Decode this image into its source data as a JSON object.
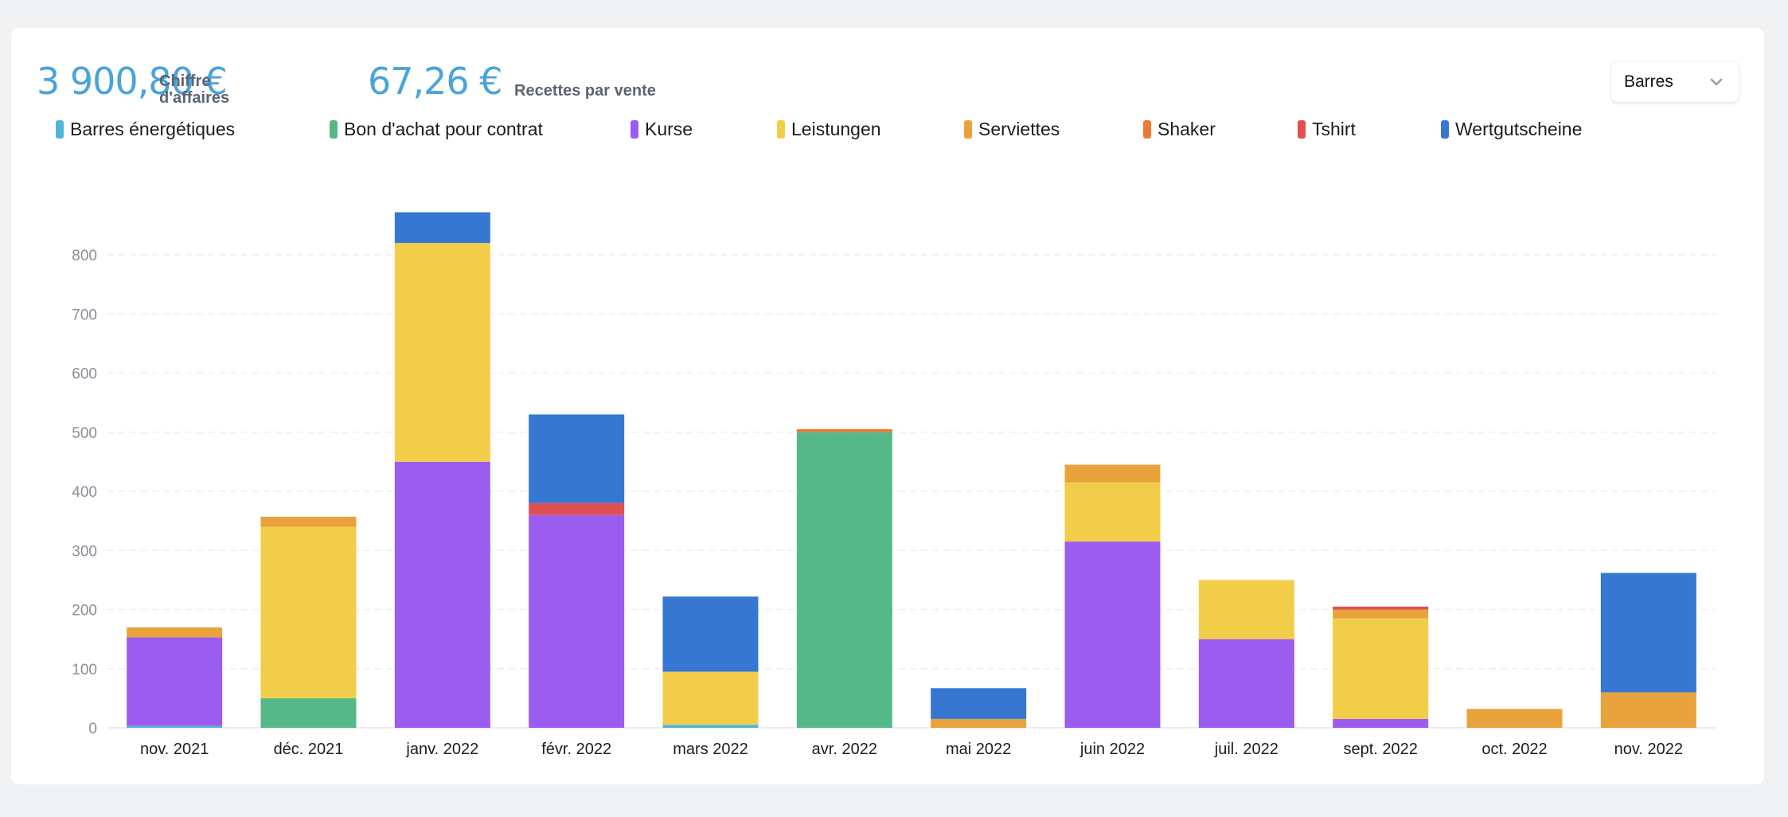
{
  "kpis": [
    {
      "value": "3 900,80 €",
      "label_line1": "Chiffre",
      "label_line2": "d'affaires"
    },
    {
      "value": "67,26 €",
      "label": "Recettes par vente"
    }
  ],
  "chart_type_select": {
    "value": "Barres",
    "icon": "chevron-down-icon"
  },
  "chart_data": {
    "type": "bar",
    "stacked": true,
    "categories": [
      "nov. 2021",
      "déc. 2021",
      "janv. 2022",
      "févr. 2022",
      "mars 2022",
      "avr. 2022",
      "mai 2022",
      "juin 2022",
      "juil. 2022",
      "sept. 2022",
      "oct. 2022",
      "nov. 2022"
    ],
    "series": [
      {
        "name": "Barres énergétiques",
        "color": "#4fb6d8",
        "values": [
          3,
          0,
          0,
          0,
          5,
          0,
          0,
          0,
          0,
          0,
          0,
          0
        ]
      },
      {
        "name": "Bon d'achat pour contrat",
        "color": "#55b888",
        "values": [
          0,
          50,
          0,
          0,
          0,
          500,
          0,
          0,
          0,
          0,
          0,
          0
        ]
      },
      {
        "name": "Kurse",
        "color": "#9b5cf0",
        "values": [
          150,
          0,
          450,
          360,
          0,
          0,
          0,
          315,
          150,
          15,
          0,
          0
        ]
      },
      {
        "name": "Leistungen",
        "color": "#f2cd4a",
        "values": [
          0,
          290,
          370,
          0,
          90,
          0,
          0,
          100,
          100,
          170,
          0,
          0
        ]
      },
      {
        "name": "Serviettes",
        "color": "#e8a33d",
        "values": [
          17,
          17,
          0,
          0,
          0,
          0,
          15,
          30,
          0,
          15,
          32,
          60
        ]
      },
      {
        "name": "Shaker",
        "color": "#ec7a32",
        "values": [
          0,
          0,
          0,
          0,
          0,
          5,
          0,
          0,
          0,
          0,
          0,
          0
        ]
      },
      {
        "name": "Tshirt",
        "color": "#e15050",
        "values": [
          0,
          0,
          0,
          20,
          0,
          0,
          0,
          0,
          0,
          5,
          0,
          0
        ]
      },
      {
        "name": "Wertgutscheine",
        "color": "#3577d1",
        "values": [
          0,
          0,
          52,
          150,
          127,
          0,
          52,
          0,
          0,
          0,
          0,
          202
        ]
      }
    ],
    "yticks": [
      0,
      100,
      200,
      300,
      400,
      500,
      600,
      700,
      800
    ],
    "ylim": [
      0,
      880
    ],
    "grid": true,
    "legend_position": "top"
  }
}
